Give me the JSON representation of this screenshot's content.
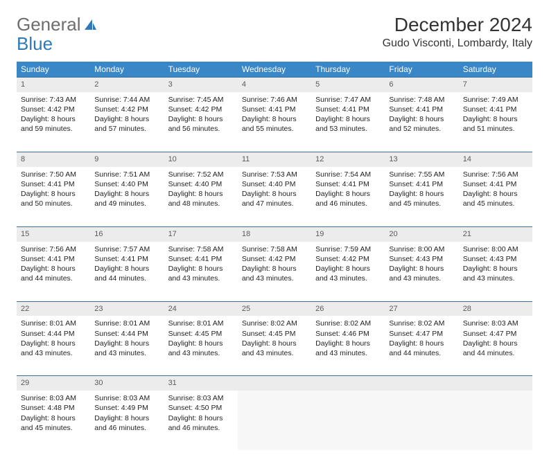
{
  "brand": {
    "part1": "General",
    "part2": "Blue"
  },
  "title": "December 2024",
  "location": "Gudo Visconti, Lombardy, Italy",
  "colors": {
    "header_bg": "#3a87c8",
    "header_text": "#ffffff",
    "daynum_bg": "#ececec",
    "rule": "#3a6f9a",
    "brand_grey": "#6d6d6d",
    "brand_blue": "#2e79b9"
  },
  "weekdays": [
    "Sunday",
    "Monday",
    "Tuesday",
    "Wednesday",
    "Thursday",
    "Friday",
    "Saturday"
  ],
  "weeks": [
    [
      {
        "n": "1",
        "sunrise": "7:43 AM",
        "sunset": "4:42 PM",
        "daylight": "8 hours and 59 minutes."
      },
      {
        "n": "2",
        "sunrise": "7:44 AM",
        "sunset": "4:42 PM",
        "daylight": "8 hours and 57 minutes."
      },
      {
        "n": "3",
        "sunrise": "7:45 AM",
        "sunset": "4:42 PM",
        "daylight": "8 hours and 56 minutes."
      },
      {
        "n": "4",
        "sunrise": "7:46 AM",
        "sunset": "4:41 PM",
        "daylight": "8 hours and 55 minutes."
      },
      {
        "n": "5",
        "sunrise": "7:47 AM",
        "sunset": "4:41 PM",
        "daylight": "8 hours and 53 minutes."
      },
      {
        "n": "6",
        "sunrise": "7:48 AM",
        "sunset": "4:41 PM",
        "daylight": "8 hours and 52 minutes."
      },
      {
        "n": "7",
        "sunrise": "7:49 AM",
        "sunset": "4:41 PM",
        "daylight": "8 hours and 51 minutes."
      }
    ],
    [
      {
        "n": "8",
        "sunrise": "7:50 AM",
        "sunset": "4:41 PM",
        "daylight": "8 hours and 50 minutes."
      },
      {
        "n": "9",
        "sunrise": "7:51 AM",
        "sunset": "4:40 PM",
        "daylight": "8 hours and 49 minutes."
      },
      {
        "n": "10",
        "sunrise": "7:52 AM",
        "sunset": "4:40 PM",
        "daylight": "8 hours and 48 minutes."
      },
      {
        "n": "11",
        "sunrise": "7:53 AM",
        "sunset": "4:40 PM",
        "daylight": "8 hours and 47 minutes."
      },
      {
        "n": "12",
        "sunrise": "7:54 AM",
        "sunset": "4:41 PM",
        "daylight": "8 hours and 46 minutes."
      },
      {
        "n": "13",
        "sunrise": "7:55 AM",
        "sunset": "4:41 PM",
        "daylight": "8 hours and 45 minutes."
      },
      {
        "n": "14",
        "sunrise": "7:56 AM",
        "sunset": "4:41 PM",
        "daylight": "8 hours and 45 minutes."
      }
    ],
    [
      {
        "n": "15",
        "sunrise": "7:56 AM",
        "sunset": "4:41 PM",
        "daylight": "8 hours and 44 minutes."
      },
      {
        "n": "16",
        "sunrise": "7:57 AM",
        "sunset": "4:41 PM",
        "daylight": "8 hours and 44 minutes."
      },
      {
        "n": "17",
        "sunrise": "7:58 AM",
        "sunset": "4:41 PM",
        "daylight": "8 hours and 43 minutes."
      },
      {
        "n": "18",
        "sunrise": "7:58 AM",
        "sunset": "4:42 PM",
        "daylight": "8 hours and 43 minutes."
      },
      {
        "n": "19",
        "sunrise": "7:59 AM",
        "sunset": "4:42 PM",
        "daylight": "8 hours and 43 minutes."
      },
      {
        "n": "20",
        "sunrise": "8:00 AM",
        "sunset": "4:43 PM",
        "daylight": "8 hours and 43 minutes."
      },
      {
        "n": "21",
        "sunrise": "8:00 AM",
        "sunset": "4:43 PM",
        "daylight": "8 hours and 43 minutes."
      }
    ],
    [
      {
        "n": "22",
        "sunrise": "8:01 AM",
        "sunset": "4:44 PM",
        "daylight": "8 hours and 43 minutes."
      },
      {
        "n": "23",
        "sunrise": "8:01 AM",
        "sunset": "4:44 PM",
        "daylight": "8 hours and 43 minutes."
      },
      {
        "n": "24",
        "sunrise": "8:01 AM",
        "sunset": "4:45 PM",
        "daylight": "8 hours and 43 minutes."
      },
      {
        "n": "25",
        "sunrise": "8:02 AM",
        "sunset": "4:45 PM",
        "daylight": "8 hours and 43 minutes."
      },
      {
        "n": "26",
        "sunrise": "8:02 AM",
        "sunset": "4:46 PM",
        "daylight": "8 hours and 43 minutes."
      },
      {
        "n": "27",
        "sunrise": "8:02 AM",
        "sunset": "4:47 PM",
        "daylight": "8 hours and 44 minutes."
      },
      {
        "n": "28",
        "sunrise": "8:03 AM",
        "sunset": "4:47 PM",
        "daylight": "8 hours and 44 minutes."
      }
    ],
    [
      {
        "n": "29",
        "sunrise": "8:03 AM",
        "sunset": "4:48 PM",
        "daylight": "8 hours and 45 minutes."
      },
      {
        "n": "30",
        "sunrise": "8:03 AM",
        "sunset": "4:49 PM",
        "daylight": "8 hours and 46 minutes."
      },
      {
        "n": "31",
        "sunrise": "8:03 AM",
        "sunset": "4:50 PM",
        "daylight": "8 hours and 46 minutes."
      },
      null,
      null,
      null,
      null
    ]
  ],
  "labels": {
    "sunrise": "Sunrise:",
    "sunset": "Sunset:",
    "daylight": "Daylight:"
  }
}
